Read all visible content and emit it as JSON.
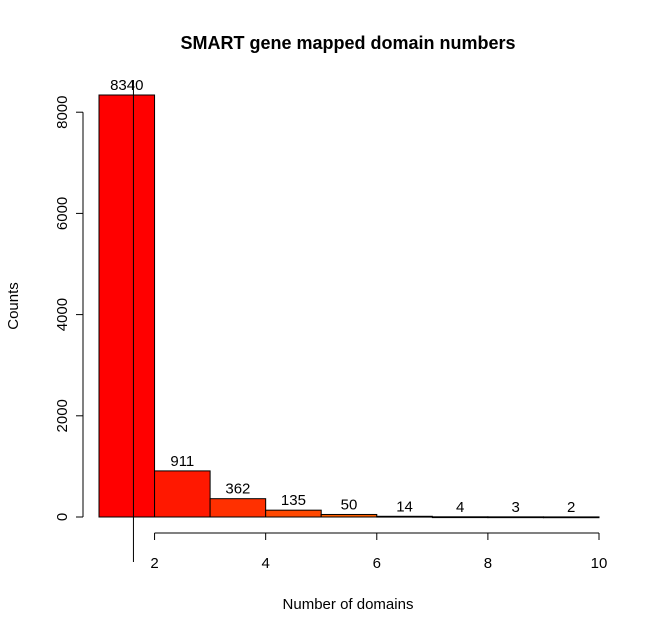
{
  "chart_data": {
    "type": "bar",
    "title": "SMART gene mapped domain numbers",
    "xlabel": "Number of domains",
    "ylabel": "Counts",
    "bins": [
      {
        "x0": 1,
        "x1": 2,
        "value": 8340,
        "label": "8340",
        "color": "#FF0000"
      },
      {
        "x0": 2,
        "x1": 3,
        "value": 911,
        "label": "911",
        "color": "#FF1800"
      },
      {
        "x0": 3,
        "x1": 4,
        "value": 362,
        "label": "362",
        "color": "#FF3000"
      },
      {
        "x0": 4,
        "x1": 5,
        "value": 135,
        "label": "135",
        "color": "#FF4800"
      },
      {
        "x0": 5,
        "x1": 6,
        "value": 50,
        "label": "50",
        "color": "#FF6000"
      },
      {
        "x0": 6,
        "x1": 7,
        "value": 14,
        "label": "14",
        "color": "#FF7800"
      },
      {
        "x0": 7,
        "x1": 8,
        "value": 4,
        "label": "4",
        "color": "#FF9000"
      },
      {
        "x0": 8,
        "x1": 9,
        "value": 3,
        "label": "3",
        "color": "#FFA800"
      },
      {
        "x0": 9,
        "x1": 10,
        "value": 2,
        "label": "2",
        "color": "#FFC000"
      }
    ],
    "xlim": [
      1,
      10
    ],
    "ylim": [
      0,
      8340
    ],
    "xticks": [
      2,
      4,
      6,
      8,
      10
    ],
    "yticks": [
      0,
      2000,
      4000,
      6000,
      8000
    ],
    "mean_line_x": 1.62,
    "grid": false,
    "legend": "none"
  }
}
